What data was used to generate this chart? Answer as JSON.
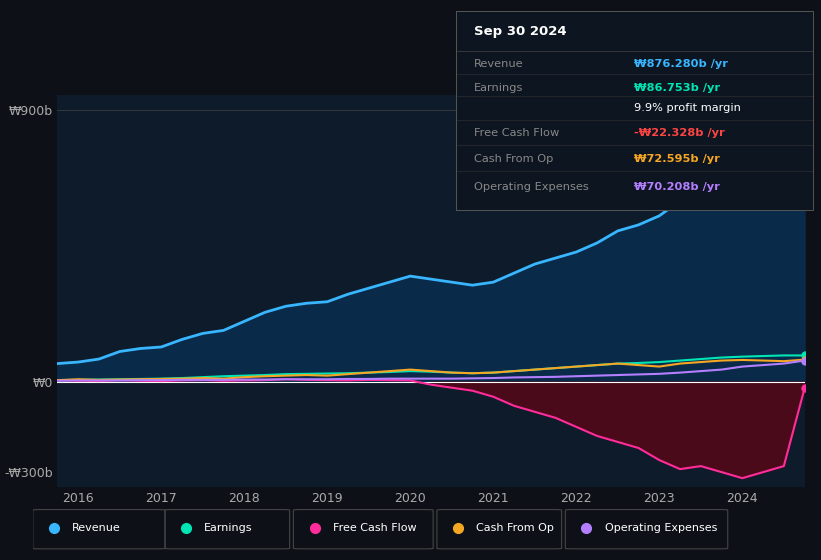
{
  "background_color": "#0d1117",
  "plot_bg_color": "#0d1b2a",
  "years": [
    2015.75,
    2016.0,
    2016.25,
    2016.5,
    2016.75,
    2017.0,
    2017.25,
    2017.5,
    2017.75,
    2018.0,
    2018.25,
    2018.5,
    2018.75,
    2019.0,
    2019.25,
    2019.5,
    2019.75,
    2020.0,
    2020.25,
    2020.5,
    2020.75,
    2021.0,
    2021.25,
    2021.5,
    2021.75,
    2022.0,
    2022.25,
    2022.5,
    2022.75,
    2023.0,
    2023.25,
    2023.5,
    2023.75,
    2024.0,
    2024.25,
    2024.5,
    2024.75
  ],
  "revenue": [
    60,
    65,
    75,
    100,
    110,
    115,
    140,
    160,
    170,
    200,
    230,
    250,
    260,
    265,
    290,
    310,
    330,
    350,
    340,
    330,
    320,
    330,
    360,
    390,
    410,
    430,
    460,
    500,
    520,
    550,
    600,
    680,
    750,
    820,
    870,
    860,
    876
  ],
  "earnings": [
    5,
    6,
    7,
    8,
    9,
    10,
    12,
    15,
    18,
    20,
    22,
    25,
    26,
    27,
    28,
    30,
    32,
    35,
    33,
    30,
    28,
    30,
    35,
    40,
    45,
    50,
    55,
    60,
    62,
    65,
    70,
    75,
    80,
    83,
    85,
    87,
    87
  ],
  "free_cash_flow": [
    5,
    3,
    2,
    5,
    3,
    2,
    4,
    5,
    3,
    4,
    5,
    8,
    6,
    5,
    4,
    6,
    5,
    4,
    -10,
    -20,
    -30,
    -50,
    -80,
    -100,
    -120,
    -150,
    -180,
    -200,
    -220,
    -260,
    -290,
    -280,
    -300,
    -320,
    -300,
    -280,
    -22
  ],
  "cash_from_op": [
    5,
    8,
    6,
    7,
    8,
    9,
    10,
    12,
    10,
    15,
    18,
    20,
    22,
    20,
    25,
    30,
    35,
    40,
    35,
    30,
    28,
    30,
    35,
    40,
    45,
    50,
    55,
    60,
    55,
    50,
    60,
    65,
    70,
    72,
    70,
    68,
    73
  ],
  "operating_expenses": [
    3,
    4,
    4,
    4,
    5,
    5,
    6,
    6,
    6,
    7,
    7,
    8,
    8,
    8,
    9,
    9,
    10,
    10,
    10,
    10,
    11,
    12,
    14,
    15,
    16,
    18,
    20,
    22,
    24,
    26,
    30,
    35,
    40,
    50,
    55,
    60,
    70
  ],
  "ylim": [
    -350,
    950
  ],
  "yticks": [
    -300,
    0,
    900
  ],
  "ytick_labels": [
    "-₩300b",
    "₩0",
    "₩900b"
  ],
  "xtick_years": [
    2016,
    2017,
    2018,
    2019,
    2020,
    2021,
    2022,
    2023,
    2024
  ],
  "revenue_color": "#38b6ff",
  "earnings_color": "#00e5b4",
  "fcf_color": "#ff2d9b",
  "cash_from_op_color": "#f5a623",
  "op_expenses_color": "#b47fff",
  "revenue_fill_color": "#0a2a4a",
  "fcf_fill_color": "#4a0a1a",
  "info_box_bg": "#0d1520",
  "info_box_border": "#555555",
  "legend_items": [
    {
      "label": "Revenue",
      "color": "#38b6ff"
    },
    {
      "label": "Earnings",
      "color": "#00e5b4"
    },
    {
      "label": "Free Cash Flow",
      "color": "#ff2d9b"
    },
    {
      "label": "Cash From Op",
      "color": "#f5a623"
    },
    {
      "label": "Operating Expenses",
      "color": "#b47fff"
    }
  ],
  "info_rows": [
    {
      "label": "Revenue",
      "value": "₩876.280b /yr",
      "label_color": "#888888",
      "value_color": "#38b6ff"
    },
    {
      "label": "Earnings",
      "value": "₩86.753b /yr",
      "label_color": "#888888",
      "value_color": "#00e5b4"
    },
    {
      "label": "",
      "value": "9.9% profit margin",
      "label_color": "#888888",
      "value_color": "#ffffff"
    },
    {
      "label": "Free Cash Flow",
      "value": "-₩22.328b /yr",
      "label_color": "#888888",
      "value_color": "#ff4444"
    },
    {
      "label": "Cash From Op",
      "value": "₩72.595b /yr",
      "label_color": "#888888",
      "value_color": "#f5a623"
    },
    {
      "label": "Operating Expenses",
      "value": "₩70.208b /yr",
      "label_color": "#888888",
      "value_color": "#b47fff"
    }
  ]
}
